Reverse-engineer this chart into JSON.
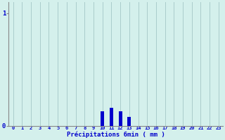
{
  "hours": [
    0,
    1,
    2,
    3,
    4,
    5,
    6,
    7,
    8,
    9,
    10,
    11,
    12,
    13,
    14,
    15,
    16,
    17,
    18,
    19,
    20,
    21,
    22,
    23
  ],
  "values": [
    0,
    0,
    0,
    0,
    0,
    0,
    0,
    0,
    0,
    0,
    0.13,
    0.16,
    0.13,
    0.08,
    0,
    0,
    0,
    0,
    0,
    0,
    0,
    0,
    0,
    0
  ],
  "bar_color": "#0000cc",
  "background_color": "#d4f0ec",
  "grid_color": "#aacccc",
  "axis_color": "#888888",
  "text_color": "#0000cc",
  "xlabel": "Précipitations 6min ( mm )",
  "yticks": [
    0,
    1
  ],
  "ylim": [
    0,
    1.1
  ],
  "xlim": [
    -0.5,
    23.5
  ],
  "bar_width": 0.4
}
